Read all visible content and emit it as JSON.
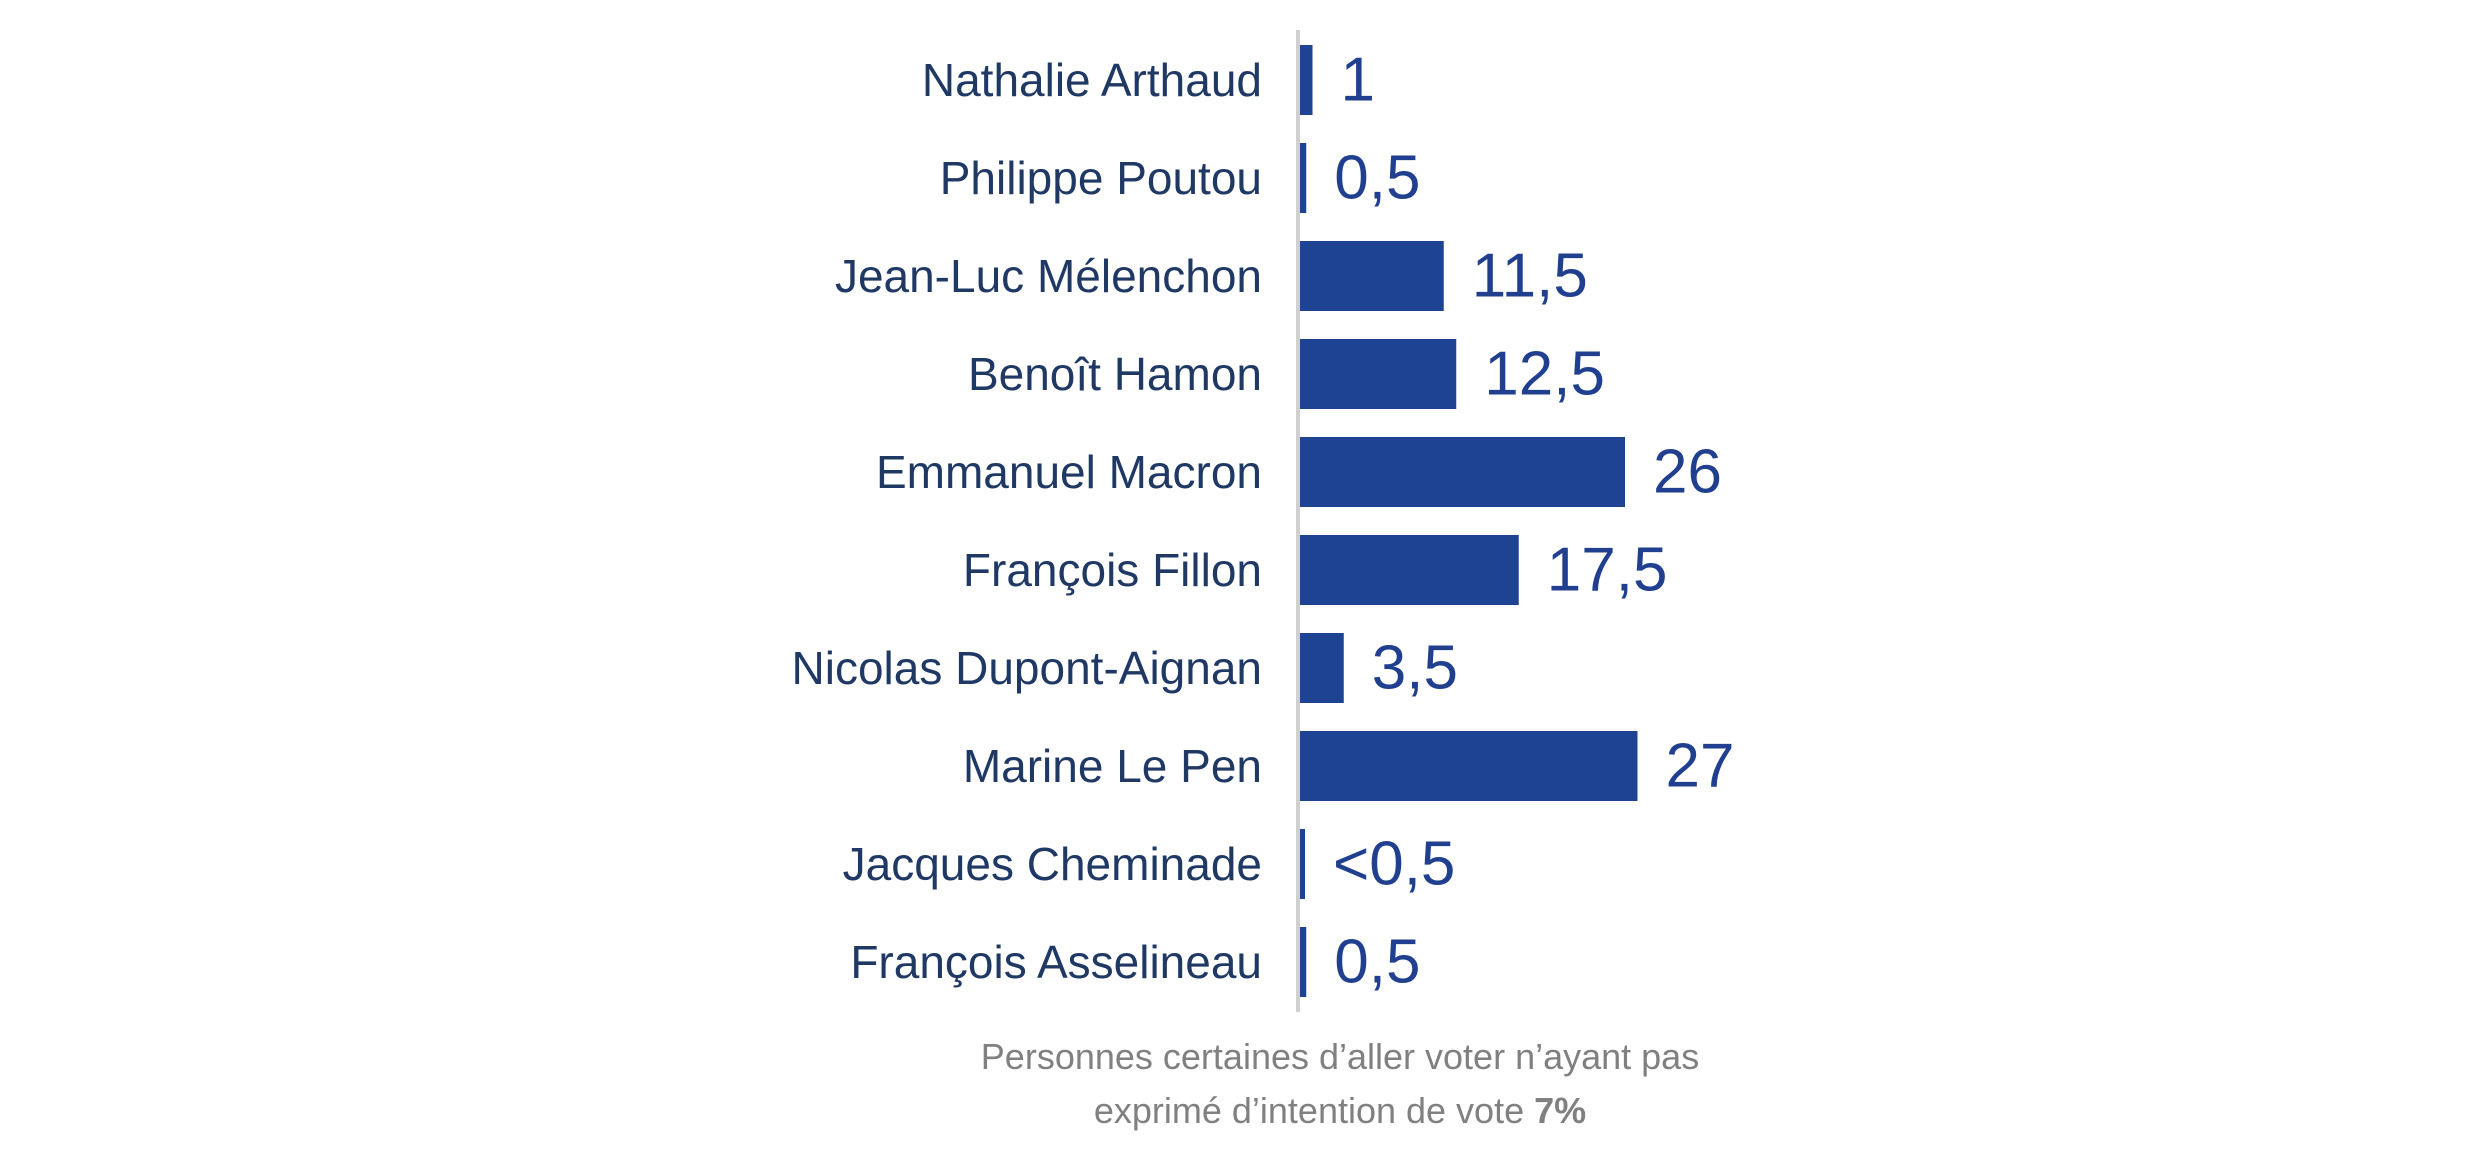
{
  "chart_data": {
    "type": "bar",
    "orientation": "horizontal",
    "categories": [
      "Nathalie Arthaud",
      "Philippe  Poutou",
      "Jean-Luc Mélenchon",
      "Benoît Hamon",
      "Emmanuel Macron",
      "François Fillon",
      "Nicolas Dupont-Aignan",
      "Marine Le Pen",
      "Jacques Cheminade",
      "François Asselineau"
    ],
    "values": [
      1,
      0.5,
      11.5,
      12.5,
      26,
      17.5,
      3.5,
      27,
      0.25,
      0.5
    ],
    "data_labels": [
      "1",
      "0,5",
      "11,5",
      "12,5",
      "26",
      "17,5",
      "3,5",
      "27",
      "<0,5",
      "0,5"
    ],
    "xlim": [
      0,
      27
    ],
    "grid": false,
    "legend": "none",
    "colors": {
      "bar": "#1f4393",
      "category_text": "#1f3864",
      "value_text": "#203f8f",
      "footnote_text": "#808080"
    }
  },
  "footnote": {
    "line1": "Personnes certaines d’aller voter n’ayant pas",
    "line2": "exprimé d’intention de vote",
    "value": "7%"
  }
}
